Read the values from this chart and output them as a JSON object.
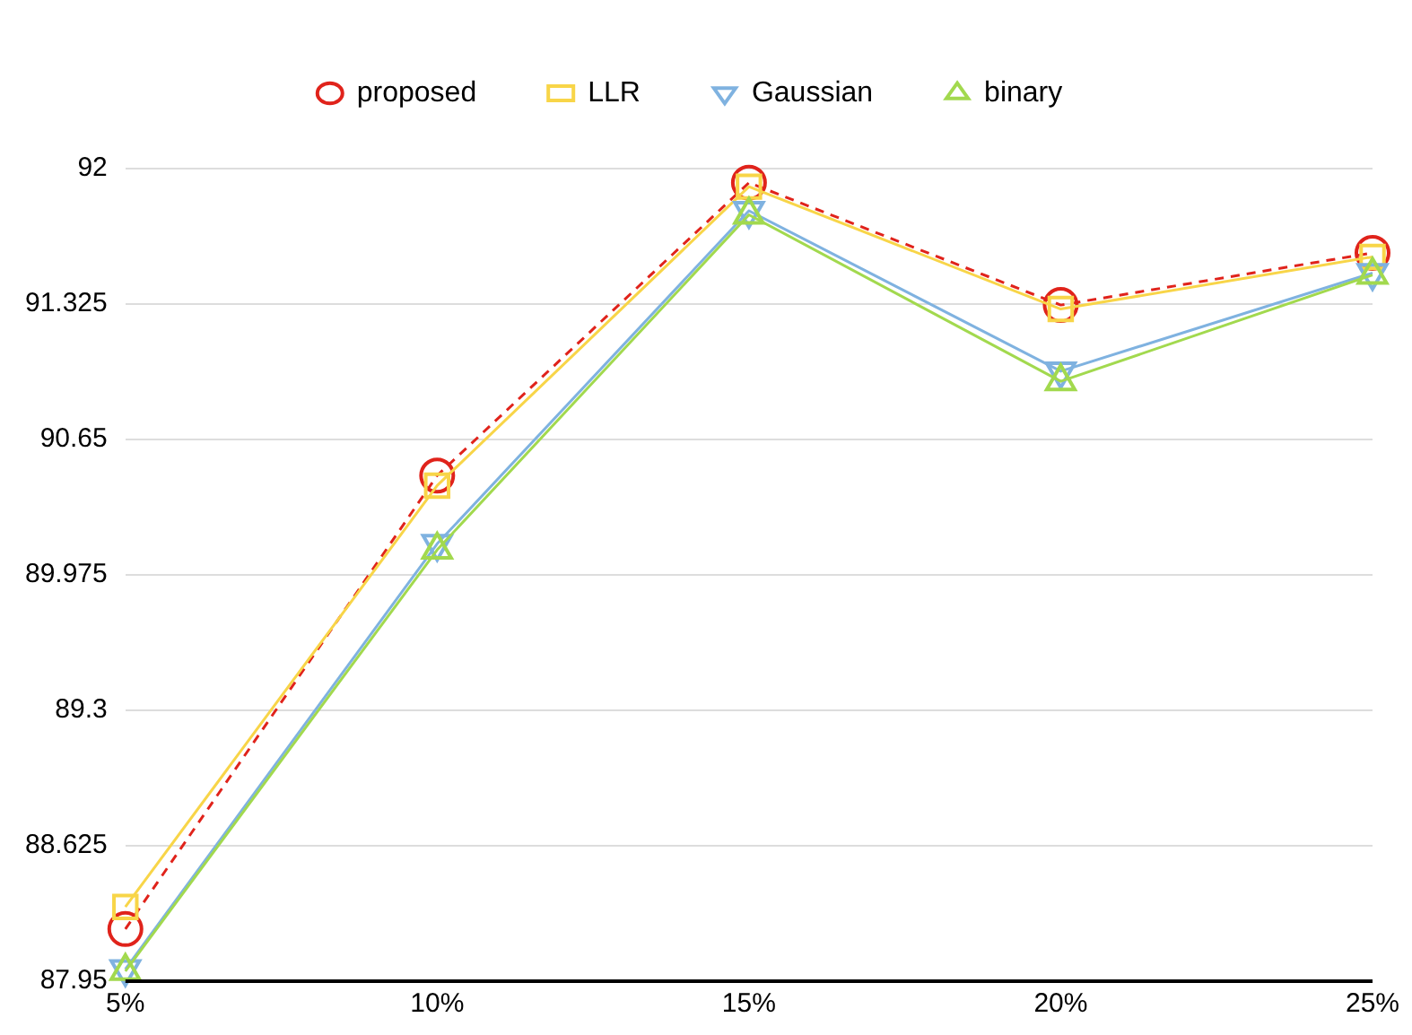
{
  "chart_data": {
    "type": "line",
    "categories": [
      "5%",
      "10%",
      "15%",
      "20%",
      "25%"
    ],
    "series": [
      {
        "name": "proposed",
        "color": "#e0231b",
        "marker": "circle",
        "line_style": "dashed",
        "values": [
          88.21,
          90.47,
          91.93,
          91.32,
          91.58
        ]
      },
      {
        "name": "LLR",
        "color": "#f8d548",
        "marker": "square",
        "line_style": "solid",
        "values": [
          88.32,
          90.42,
          91.91,
          91.3,
          91.56
        ]
      },
      {
        "name": "Gaussian",
        "color": "#7fb2e0",
        "marker": "triangle-down",
        "line_style": "solid",
        "values": [
          88.01,
          90.13,
          91.79,
          90.99,
          91.48
        ]
      },
      {
        "name": "binary",
        "color": "#a2d94e",
        "marker": "triangle",
        "line_style": "solid",
        "values": [
          88.0,
          90.1,
          91.77,
          90.94,
          91.47
        ]
      }
    ],
    "ylim": [
      87.95,
      92
    ],
    "yticks": [
      87.95,
      88.625,
      89.3,
      89.975,
      90.65,
      91.325,
      92
    ],
    "grid": "y",
    "legend": "top"
  }
}
